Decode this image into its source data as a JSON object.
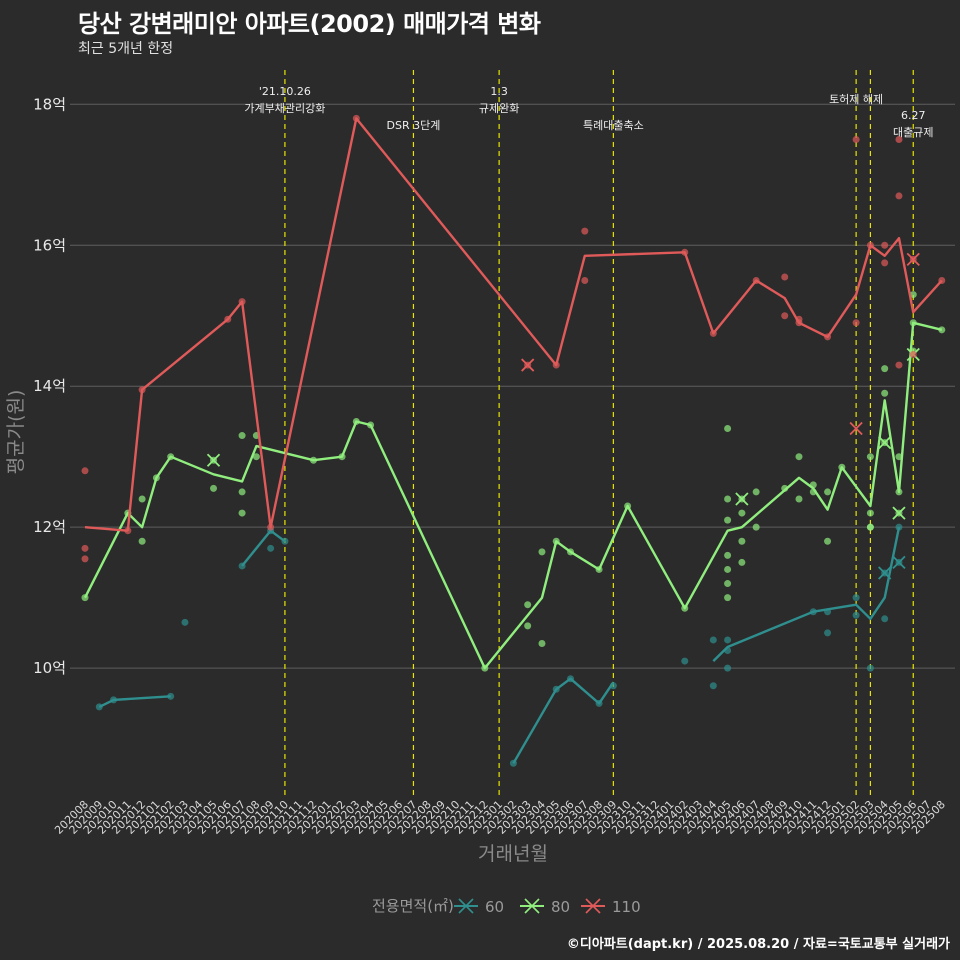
{
  "chart_data": {
    "type": "line",
    "title": "당산 강변래미안 아파트(2002) 매매가격 변화",
    "subtitle": "최근 5개년 한정",
    "caption": "©디아파트(dapt.kr) / 2025.08.20 / 자료=국토교통부 실거래가",
    "xlabel": "거래년월",
    "ylabel": "평균가(원)",
    "legend_title": "전용면적(㎡)",
    "legend_position": "bottom",
    "grid": true,
    "ylim": [
      8.2,
      18.6
    ],
    "y_ticks": [
      10,
      12,
      14,
      16,
      18
    ],
    "y_tick_labels": [
      "10억",
      "12억",
      "14억",
      "16억",
      "18억"
    ],
    "categories": [
      "202008",
      "202009",
      "202010",
      "202011",
      "202012",
      "202101",
      "202102",
      "202103",
      "202104",
      "202105",
      "202106",
      "202107",
      "202108",
      "202109",
      "202110",
      "202111",
      "202112",
      "202201",
      "202202",
      "202203",
      "202204",
      "202205",
      "202206",
      "202207",
      "202208",
      "202209",
      "202210",
      "202211",
      "202212",
      "202301",
      "202302",
      "202303",
      "202304",
      "202305",
      "202306",
      "202307",
      "202308",
      "202309",
      "202310",
      "202311",
      "202312",
      "202401",
      "202402",
      "202403",
      "202404",
      "202405",
      "202406",
      "202407",
      "202408",
      "202409",
      "202410",
      "202411",
      "202412",
      "202501",
      "202502",
      "202503",
      "202504",
      "202505",
      "202506",
      "202507",
      "202508"
    ],
    "events": [
      {
        "x": 14.0,
        "label_lines": [
          "'21.10.26",
          "가계부채관리강화"
        ]
      },
      {
        "x": 23.0,
        "label_lines": [
          "DSR 3단계"
        ]
      },
      {
        "x": 29.0,
        "label_lines": [
          "1.3",
          "규제완화"
        ]
      },
      {
        "x": 37.0,
        "label_lines": [
          "특례대출축소"
        ]
      },
      {
        "x": 54.0,
        "label_lines": [
          "토허제 해제"
        ]
      },
      {
        "x": 55.0,
        "label_lines": []
      },
      {
        "x": 58.0,
        "label_lines": [
          "6.27",
          "대출규제"
        ]
      }
    ],
    "series": [
      {
        "name": "60",
        "color": "#2f8f8f",
        "line": [
          [
            [
              1,
              9.45
            ],
            [
              2,
              9.55
            ],
            [
              6,
              9.6
            ]
          ],
          [
            [
              7,
              10.65
            ]
          ],
          [
            [
              11,
              11.45
            ],
            [
              13,
              11.95
            ],
            [
              14,
              11.8
            ]
          ],
          [
            [
              30,
              8.65
            ],
            [
              33,
              9.7
            ],
            [
              34,
              9.85
            ],
            [
              36,
              9.5
            ],
            [
              37,
              9.8
            ]
          ],
          [
            [
              44,
              10.1
            ],
            [
              45,
              10.3
            ],
            [
              51,
              10.8
            ],
            [
              54,
              10.9
            ],
            [
              55,
              10.7
            ],
            [
              56,
              11.0
            ],
            [
              57,
              12.0
            ]
          ]
        ],
        "points": [
          [
            1,
            9.45
          ],
          [
            2,
            9.55
          ],
          [
            6,
            9.6
          ],
          [
            7,
            10.65
          ],
          [
            11,
            11.45
          ],
          [
            13,
            11.7
          ],
          [
            13,
            11.95
          ],
          [
            14,
            11.8
          ],
          [
            30,
            8.65
          ],
          [
            33,
            9.7
          ],
          [
            34,
            9.85
          ],
          [
            36,
            9.5
          ],
          [
            37,
            9.75
          ],
          [
            42,
            10.1
          ],
          [
            44,
            10.4
          ],
          [
            44,
            9.75
          ],
          [
            45,
            10.4
          ],
          [
            45,
            10.25
          ],
          [
            45,
            10.0
          ],
          [
            51,
            10.8
          ],
          [
            52,
            10.8
          ],
          [
            52,
            10.5
          ],
          [
            54,
            11.0
          ],
          [
            54,
            10.75
          ],
          [
            55,
            10.0
          ],
          [
            56,
            10.7
          ],
          [
            56,
            11.35
          ],
          [
            57,
            11.5
          ],
          [
            57,
            12.0
          ]
        ],
        "cancelled": [
          [
            56,
            11.35
          ],
          [
            57,
            11.5
          ]
        ]
      },
      {
        "name": "80",
        "color": "#90ee7e",
        "line": [
          [
            [
              0,
              11.0
            ],
            [
              3,
              12.2
            ],
            [
              4,
              12.0
            ],
            [
              5,
              12.7
            ],
            [
              6,
              13.0
            ],
            [
              9,
              12.75
            ],
            [
              11,
              12.65
            ],
            [
              12,
              13.15
            ],
            [
              16,
              12.95
            ],
            [
              18,
              13.0
            ],
            [
              19,
              13.5
            ],
            [
              20,
              13.45
            ],
            [
              28,
              10.0
            ],
            [
              32,
              11.0
            ],
            [
              33,
              11.8
            ],
            [
              34,
              11.65
            ],
            [
              36,
              11.4
            ],
            [
              38,
              12.3
            ],
            [
              42,
              10.85
            ],
            [
              45,
              11.95
            ],
            [
              46,
              12.0
            ],
            [
              50,
              12.7
            ],
            [
              51,
              12.55
            ],
            [
              52,
              12.25
            ],
            [
              53,
              12.85
            ],
            [
              55,
              12.3
            ],
            [
              56,
              13.8
            ],
            [
              57,
              12.5
            ],
            [
              58,
              14.9
            ],
            [
              60,
              14.8
            ]
          ]
        ],
        "points": [
          [
            0,
            11.0
          ],
          [
            3,
            12.2
          ],
          [
            4,
            12.4
          ],
          [
            4,
            11.8
          ],
          [
            5,
            12.7
          ],
          [
            6,
            13.0
          ],
          [
            9,
            12.95
          ],
          [
            9,
            12.55
          ],
          [
            11,
            13.3
          ],
          [
            11,
            12.5
          ],
          [
            11,
            12.2
          ],
          [
            12,
            13.3
          ],
          [
            12,
            13.0
          ],
          [
            16,
            12.95
          ],
          [
            18,
            13.0
          ],
          [
            19,
            13.5
          ],
          [
            20,
            13.45
          ],
          [
            28,
            10.0
          ],
          [
            31,
            10.9
          ],
          [
            31,
            10.6
          ],
          [
            32,
            11.65
          ],
          [
            32,
            10.35
          ],
          [
            33,
            11.8
          ],
          [
            34,
            11.65
          ],
          [
            36,
            11.4
          ],
          [
            38,
            12.3
          ],
          [
            42,
            10.85
          ],
          [
            45,
            13.4
          ],
          [
            45,
            12.4
          ],
          [
            45,
            12.1
          ],
          [
            45,
            11.6
          ],
          [
            45,
            11.4
          ],
          [
            45,
            11.2
          ],
          [
            45,
            11.0
          ],
          [
            46,
            12.4
          ],
          [
            46,
            12.2
          ],
          [
            46,
            11.8
          ],
          [
            46,
            11.5
          ],
          [
            47,
            12.5
          ],
          [
            47,
            12.0
          ],
          [
            49,
            12.55
          ],
          [
            50,
            13.0
          ],
          [
            50,
            12.4
          ],
          [
            51,
            12.6
          ],
          [
            51,
            12.5
          ],
          [
            52,
            12.5
          ],
          [
            52,
            11.8
          ],
          [
            53,
            12.85
          ],
          [
            55,
            13.0
          ],
          [
            55,
            12.2
          ],
          [
            55,
            12.0
          ],
          [
            55,
            12.0
          ],
          [
            56,
            14.25
          ],
          [
            56,
            13.9
          ],
          [
            56,
            13.2
          ],
          [
            57,
            13.0
          ],
          [
            57,
            12.5
          ],
          [
            57,
            12.2
          ],
          [
            58,
            15.3
          ],
          [
            58,
            14.9
          ],
          [
            58,
            14.5
          ],
          [
            60,
            14.8
          ]
        ],
        "cancelled": [
          [
            9,
            12.95
          ],
          [
            46,
            12.4
          ],
          [
            56,
            13.2
          ],
          [
            57,
            12.2
          ],
          [
            58,
            14.45
          ]
        ]
      },
      {
        "name": "110",
        "color": "#e05a5a",
        "line": [
          [
            [
              0,
              12.0
            ],
            [
              3,
              11.95
            ]
          ],
          [
            [
              3,
              11.95
            ],
            [
              4,
              13.95
            ],
            [
              10,
              14.95
            ],
            [
              11,
              15.2
            ],
            [
              13,
              12.0
            ],
            [
              19,
              17.8
            ],
            [
              33,
              14.3
            ],
            [
              35,
              15.85
            ],
            [
              42,
              15.9
            ],
            [
              44,
              14.75
            ],
            [
              47,
              15.5
            ],
            [
              49,
              15.25
            ],
            [
              50,
              14.9
            ],
            [
              52,
              14.7
            ],
            [
              54,
              15.3
            ],
            [
              55,
              16.0
            ],
            [
              56,
              15.85
            ],
            [
              57,
              16.1
            ],
            [
              58,
              15.05
            ],
            [
              60,
              15.5
            ]
          ]
        ],
        "points": [
          [
            0,
            12.8
          ],
          [
            0,
            11.7
          ],
          [
            0,
            11.55
          ],
          [
            3,
            11.95
          ],
          [
            4,
            13.95
          ],
          [
            10,
            14.95
          ],
          [
            11,
            15.2
          ],
          [
            13,
            12.0
          ],
          [
            19,
            17.8
          ],
          [
            31,
            14.3
          ],
          [
            33,
            14.3
          ],
          [
            35,
            16.2
          ],
          [
            35,
            15.5
          ],
          [
            42,
            15.9
          ],
          [
            44,
            14.75
          ],
          [
            47,
            15.5
          ],
          [
            49,
            15.55
          ],
          [
            49,
            15.0
          ],
          [
            50,
            14.95
          ],
          [
            50,
            14.9
          ],
          [
            52,
            14.7
          ],
          [
            54,
            17.5
          ],
          [
            54,
            14.9
          ],
          [
            55,
            16.0
          ],
          [
            56,
            16.0
          ],
          [
            56,
            15.75
          ],
          [
            57,
            17.5
          ],
          [
            57,
            16.7
          ],
          [
            57,
            14.3
          ],
          [
            58,
            15.8
          ],
          [
            58,
            14.45
          ],
          [
            60,
            15.5
          ]
        ],
        "cancelled": [
          [
            31,
            14.3
          ],
          [
            54,
            13.4
          ],
          [
            58,
            15.8
          ]
        ]
      }
    ]
  }
}
